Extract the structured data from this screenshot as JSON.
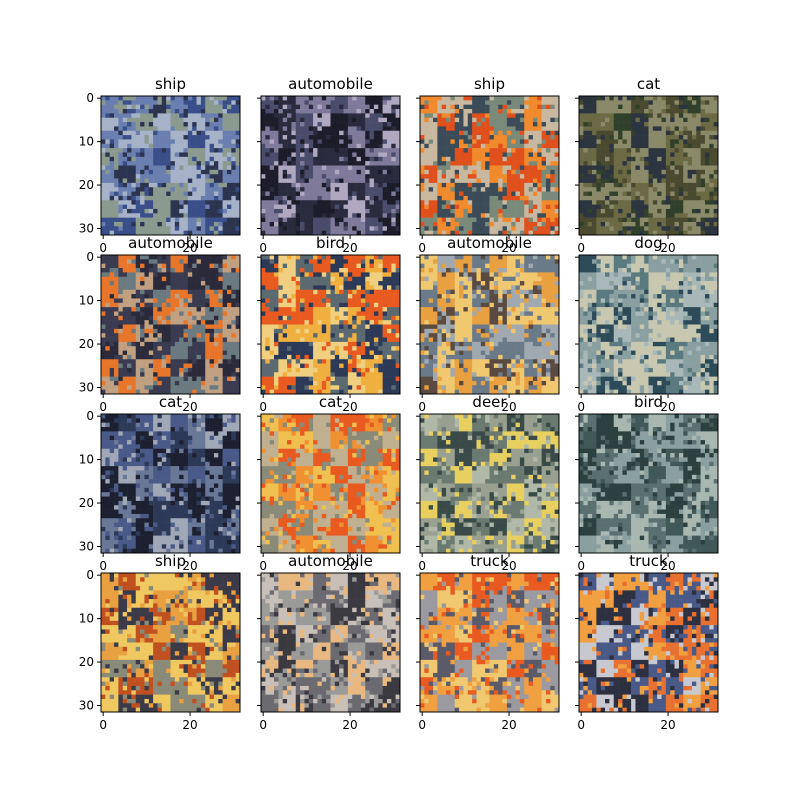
{
  "figure": {
    "background": "#ffffff",
    "axis_color": "#000000"
  },
  "chart_data": {
    "type": "image-grid",
    "rows": 4,
    "cols": 4,
    "image_size": [
      32,
      32
    ],
    "xlim": [
      0,
      31
    ],
    "ylim": [
      31,
      0
    ],
    "xticks": [
      0,
      20
    ],
    "yticks": [
      0,
      10,
      20,
      30
    ],
    "shared_y_ticklabels_first_column_only": true,
    "panels": [
      {
        "title": "ship",
        "dominant_colors": [
          "#3a4f8a",
          "#6a7fb0",
          "#8a9a8f",
          "#2c3550",
          "#a6b2c8"
        ]
      },
      {
        "title": "automobile",
        "dominant_colors": [
          "#2b2b3f",
          "#4a4c6b",
          "#807a9a",
          "#1c1c2a",
          "#b0a8c0"
        ]
      },
      {
        "title": "ship",
        "dominant_colors": [
          "#e0501c",
          "#f08a2c",
          "#7a8a7a",
          "#3b4b58",
          "#c8b8a0"
        ]
      },
      {
        "title": "cat",
        "dominant_colors": [
          "#4a4a30",
          "#6b6a45",
          "#2c3440",
          "#8a8a6a",
          "#30402a"
        ]
      },
      {
        "title": "automobile",
        "dominant_colors": [
          "#e8762a",
          "#6a7a80",
          "#3a3a50",
          "#c0a080",
          "#2a2a3a"
        ]
      },
      {
        "title": "bird",
        "dominant_colors": [
          "#f0b040",
          "#e85a20",
          "#2c3a58",
          "#5a6a70",
          "#f0d080"
        ]
      },
      {
        "title": "automobile",
        "dominant_colors": [
          "#e8a040",
          "#a0a8b0",
          "#5a4a40",
          "#f0c870",
          "#6a7a88"
        ]
      },
      {
        "title": "dog",
        "dominant_colors": [
          "#a8b8b8",
          "#5a7a80",
          "#c8c8b0",
          "#2c4a58",
          "#8aa0a0"
        ]
      },
      {
        "title": "cat",
        "dominant_colors": [
          "#2c3a58",
          "#4a5a88",
          "#a0a8b8",
          "#1c2030",
          "#6a7898"
        ]
      },
      {
        "title": "cat",
        "dominant_colors": [
          "#e85a20",
          "#f09030",
          "#c0b090",
          "#8a8a78",
          "#f0c050"
        ]
      },
      {
        "title": "deer",
        "dominant_colors": [
          "#6a7a70",
          "#9aa090",
          "#e8d060",
          "#3a4a48",
          "#b0b8a8"
        ]
      },
      {
        "title": "bird",
        "dominant_colors": [
          "#5a7070",
          "#8aa0a0",
          "#2c4040",
          "#a8b8b0",
          "#405858"
        ]
      },
      {
        "title": "ship",
        "dominant_colors": [
          "#e8a040",
          "#f0c860",
          "#3a3a48",
          "#c05020",
          "#8a8a78"
        ]
      },
      {
        "title": "automobile",
        "dominant_colors": [
          "#c8c0b8",
          "#6a6a70",
          "#e8b880",
          "#3a3a40",
          "#9a9a98"
        ]
      },
      {
        "title": "truck",
        "dominant_colors": [
          "#e85a20",
          "#f0a040",
          "#9a9aa0",
          "#5a5a68",
          "#f0c870"
        ]
      },
      {
        "title": "truck",
        "dominant_colors": [
          "#f0a040",
          "#4a5a88",
          "#c8c8d0",
          "#2c3040",
          "#e87030"
        ]
      }
    ]
  }
}
